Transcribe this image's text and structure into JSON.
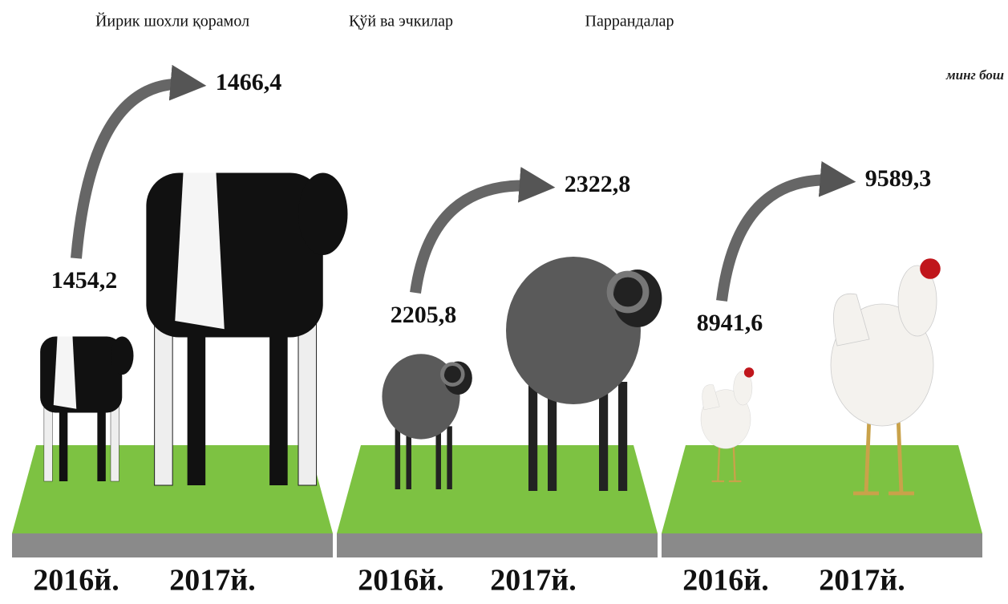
{
  "chart_data": {
    "type": "pictorial",
    "unit": "минг бош",
    "categories": [
      "2016й.",
      "2017й."
    ],
    "series": [
      {
        "name": "Йирик шохли қорамол",
        "values": [
          1454.2,
          1466.4
        ],
        "value_labels": [
          "1454,2",
          "1466,4"
        ]
      },
      {
        "name": "Қўй ва эчкилар",
        "values": [
          2205.8,
          2322.8
        ],
        "value_labels": [
          "2205,8",
          "2322,8"
        ]
      },
      {
        "name": "Паррандалар",
        "values": [
          8941.6,
          9589.3
        ],
        "value_labels": [
          "8941,6",
          "9589,3"
        ]
      }
    ]
  }
}
